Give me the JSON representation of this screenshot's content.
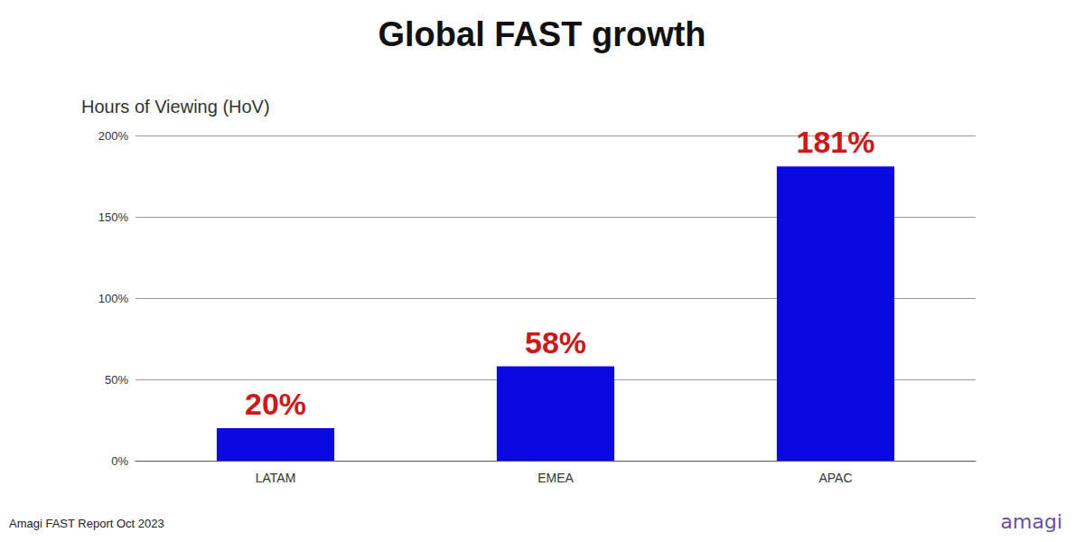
{
  "chart_data": {
    "type": "bar",
    "title": "Global FAST growth",
    "y_label": "Hours of Viewing (HoV)",
    "categories": [
      "LATAM",
      "EMEA",
      "APAC"
    ],
    "values": [
      20,
      58,
      181
    ],
    "value_labels": [
      "20%",
      "58%",
      "181%"
    ],
    "color": "#0a0ae0",
    "ylim": [
      0,
      200
    ],
    "yticks": [
      {
        "value": 0,
        "label": "0%"
      },
      {
        "value": 50,
        "label": "50%"
      },
      {
        "value": 100,
        "label": "100%"
      },
      {
        "value": 150,
        "label": "150%"
      },
      {
        "value": 200,
        "label": "200%"
      }
    ],
    "grid": true,
    "data_labels": true,
    "annotations": [
      "Amagi FAST Report Oct 2023",
      "amagi"
    ]
  }
}
